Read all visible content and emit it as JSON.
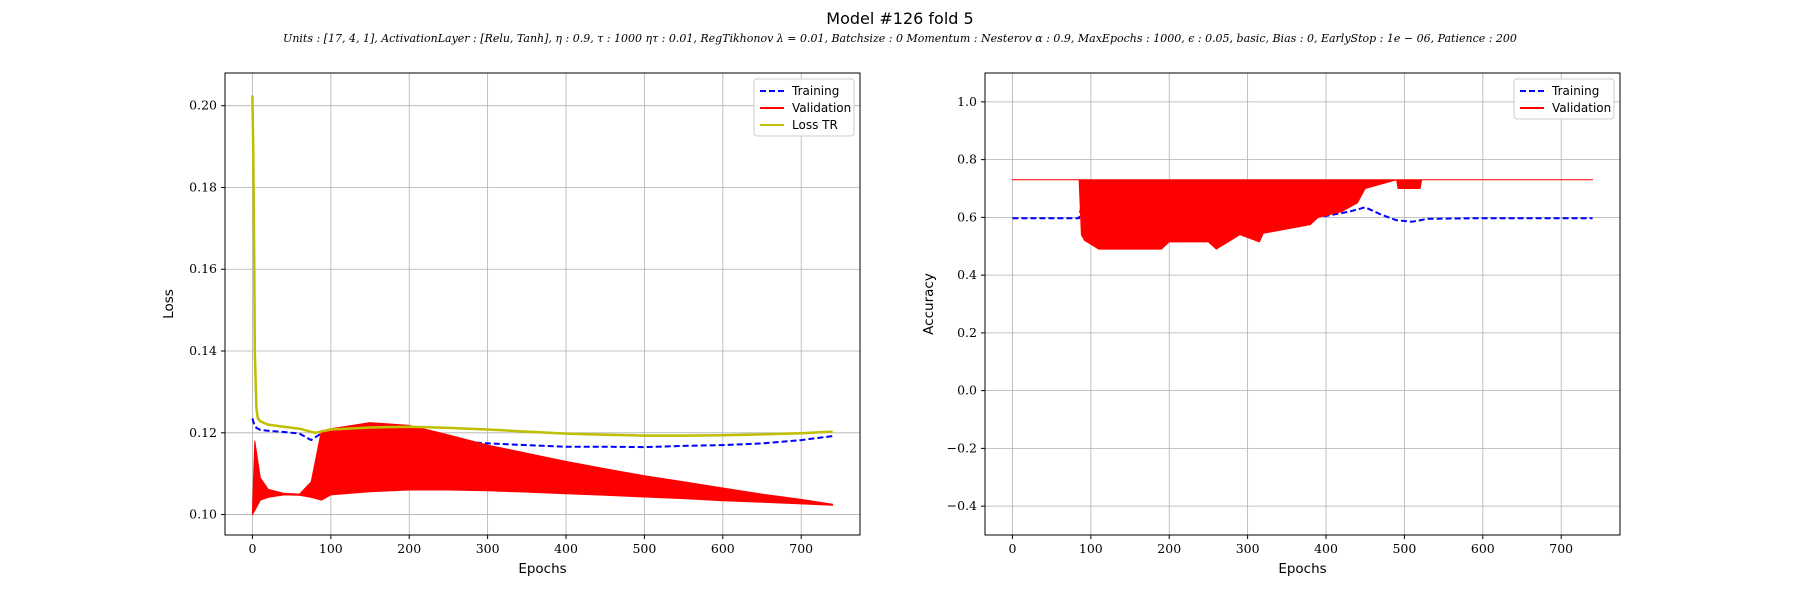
{
  "figure": {
    "title": "Model #126 fold 5",
    "subtitle": "Units : [17, 4, 1], ActivationLayer : [Relu, Tanh], η : 0.9, τ : 1000 ητ : 0.01, RegTikhonov λ = 0.01, Batchsize : 0 Momentum : Nesterov α : 0.9, MaxEpochs : 1000, ϵ : 0.05, basic, Bias : 0, EarlyStop : 1e − 06, Patience : 200"
  },
  "colors": {
    "training": "#0000ff",
    "validation": "#ff0000",
    "loss_tr": "#bfbf00"
  },
  "chart_data": [
    {
      "type": "line",
      "title": "",
      "xlabel": "Epochs",
      "ylabel": "Loss",
      "xlim": [
        -35,
        775
      ],
      "ylim": [
        0.095,
        0.208
      ],
      "xticks": [
        0,
        100,
        200,
        300,
        400,
        500,
        600,
        700
      ],
      "yticks": [
        0.1,
        0.12,
        0.14,
        0.16,
        0.18,
        0.2
      ],
      "ytick_labels": [
        "0.10",
        "0.12",
        "0.14",
        "0.16",
        "0.18",
        "0.20"
      ],
      "grid": true,
      "legend": "top-right",
      "series": [
        {
          "name": "Training",
          "style": "dashed",
          "color_key": "training",
          "x": [
            0,
            2,
            5,
            10,
            20,
            40,
            60,
            75,
            85,
            100,
            150,
            200,
            250,
            300,
            350,
            400,
            450,
            500,
            550,
            600,
            650,
            700,
            740
          ],
          "y": [
            0.1235,
            0.1222,
            0.1212,
            0.1207,
            0.1205,
            0.1202,
            0.1198,
            0.1182,
            0.1195,
            0.1198,
            0.1193,
            0.1188,
            0.118,
            0.1174,
            0.117,
            0.1166,
            0.1166,
            0.1165,
            0.1168,
            0.117,
            0.1174,
            0.1182,
            0.1192
          ]
        },
        {
          "name": "Validation",
          "style": "solid",
          "color_key": "validation",
          "band": true,
          "x": [
            0,
            3,
            10,
            20,
            40,
            60,
            75,
            88,
            100,
            150,
            200,
            250,
            300,
            350,
            400,
            450,
            500,
            550,
            600,
            650,
            700,
            740
          ],
          "upper": [
            0.1005,
            0.118,
            0.109,
            0.1062,
            0.1052,
            0.105,
            0.108,
            0.1205,
            0.121,
            0.1225,
            0.1218,
            0.1195,
            0.117,
            0.115,
            0.113,
            0.1112,
            0.1095,
            0.108,
            0.1065,
            0.105,
            0.1037,
            0.1025
          ],
          "lower": [
            0.1,
            0.101,
            0.1035,
            0.1042,
            0.1048,
            0.1047,
            0.1042,
            0.1035,
            0.1048,
            0.1056,
            0.106,
            0.106,
            0.1058,
            0.1055,
            0.1051,
            0.1047,
            0.1043,
            0.1039,
            0.1034,
            0.103,
            0.1026,
            0.1023
          ]
        },
        {
          "name": "Loss TR",
          "style": "solid",
          "color_key": "loss_tr",
          "x": [
            0,
            1,
            2,
            3,
            5,
            7,
            10,
            20,
            40,
            60,
            80,
            100,
            150,
            200,
            250,
            300,
            350,
            400,
            450,
            500,
            550,
            600,
            650,
            700,
            740
          ],
          "y": [
            0.2025,
            0.19,
            0.17,
            0.14,
            0.126,
            0.1235,
            0.1228,
            0.122,
            0.1215,
            0.121,
            0.12,
            0.1208,
            0.1213,
            0.1215,
            0.1212,
            0.1208,
            0.1203,
            0.1198,
            0.1195,
            0.1193,
            0.1193,
            0.1194,
            0.1196,
            0.1199,
            0.1203
          ]
        }
      ]
    },
    {
      "type": "line",
      "title": "",
      "xlabel": "Epochs",
      "ylabel": "Accuracy",
      "xlim": [
        -35,
        775
      ],
      "ylim": [
        -0.5,
        1.1
      ],
      "xticks": [
        0,
        100,
        200,
        300,
        400,
        500,
        600,
        700
      ],
      "yticks": [
        -0.4,
        -0.2,
        0.0,
        0.2,
        0.4,
        0.6,
        0.8,
        1.0
      ],
      "ytick_labels": [
        "−0.4",
        "−0.2",
        "0.0",
        "0.2",
        "0.4",
        "0.6",
        "0.8",
        "1.0"
      ],
      "grid": true,
      "legend": "top-right",
      "series": [
        {
          "name": "Training",
          "style": "dashed",
          "color_key": "training",
          "x": [
            0,
            85,
            88,
            100,
            150,
            200,
            250,
            300,
            350,
            400,
            430,
            450,
            470,
            490,
            510,
            530,
            600,
            700,
            740
          ],
          "y": [
            0.597,
            0.597,
            0.64,
            0.62,
            0.61,
            0.6,
            0.595,
            0.58,
            0.6,
            0.605,
            0.62,
            0.635,
            0.61,
            0.59,
            0.585,
            0.595,
            0.597,
            0.597,
            0.597
          ]
        },
        {
          "name": "Validation",
          "style": "solid",
          "color_key": "validation",
          "band": true,
          "x": [
            0,
            85,
            88,
            92,
            110,
            190,
            200,
            250,
            260,
            275,
            290,
            315,
            320,
            380,
            390,
            420,
            440,
            450,
            490,
            492,
            520,
            522,
            740
          ],
          "upper": [
            0.73,
            0.73,
            0.73,
            0.73,
            0.73,
            0.73,
            0.73,
            0.73,
            0.73,
            0.73,
            0.73,
            0.73,
            0.73,
            0.73,
            0.73,
            0.73,
            0.73,
            0.73,
            0.73,
            0.73,
            0.73,
            0.73,
            0.73
          ],
          "lower": [
            0.73,
            0.73,
            0.54,
            0.52,
            0.49,
            0.49,
            0.515,
            0.515,
            0.49,
            0.515,
            0.54,
            0.515,
            0.545,
            0.575,
            0.6,
            0.62,
            0.65,
            0.7,
            0.73,
            0.7,
            0.7,
            0.73,
            0.73
          ]
        }
      ]
    }
  ]
}
